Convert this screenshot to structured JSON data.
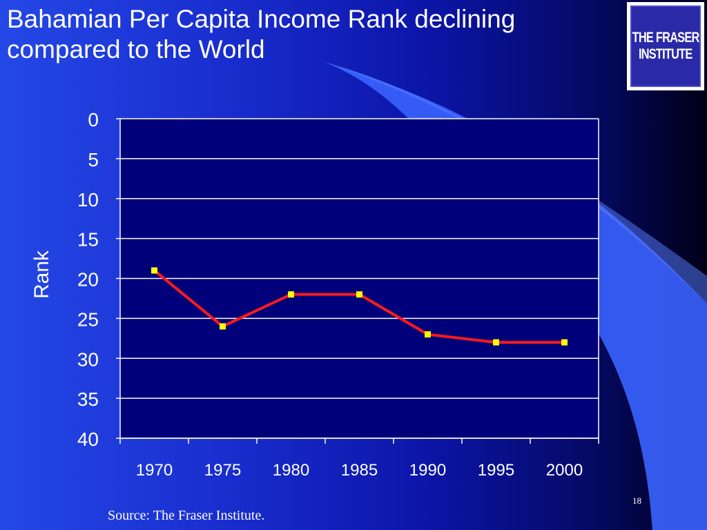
{
  "slide": {
    "title_lines": [
      "Bahamian Per Capita Income Rank declining",
      "compared to the World"
    ],
    "logo_lines": [
      "THE FRASER",
      "INSTITUTE"
    ],
    "source": "Source: The Fraser Institute.",
    "slide_number": "18"
  },
  "colors": {
    "line": "#ff1a1a",
    "marker": "#ffff00",
    "gridline": "#ffffff",
    "plot_background": "#00007a"
  },
  "chart_data": {
    "type": "line",
    "title": "",
    "xlabel": "",
    "ylabel": "Rank",
    "categories": [
      "1970",
      "1975",
      "1980",
      "1985",
      "1990",
      "1995",
      "2000"
    ],
    "series": [
      {
        "values": [
          19,
          26,
          22,
          22,
          27,
          28,
          28
        ]
      }
    ],
    "ylim": [
      0,
      40
    ],
    "y_inverted": true,
    "yticks": [
      0,
      5,
      10,
      15,
      20,
      25,
      30,
      35,
      40
    ],
    "grid": true,
    "legend": "none"
  }
}
